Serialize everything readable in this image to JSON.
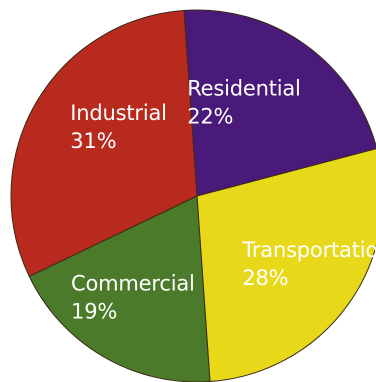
{
  "chart_data": {
    "type": "pie",
    "slices": [
      {
        "label": "Residential",
        "value": 22,
        "value_text": "22%",
        "color": "#4a1a7a"
      },
      {
        "label": "Transportation",
        "value": 28,
        "value_text": "28%",
        "color": "#e8d81a"
      },
      {
        "label": "Commercial",
        "value": 19,
        "value_text": "19%",
        "color": "#4a7a2a"
      },
      {
        "label": "Industrial",
        "value": 31,
        "value_text": "31%",
        "color": "#b82a1e"
      }
    ]
  }
}
